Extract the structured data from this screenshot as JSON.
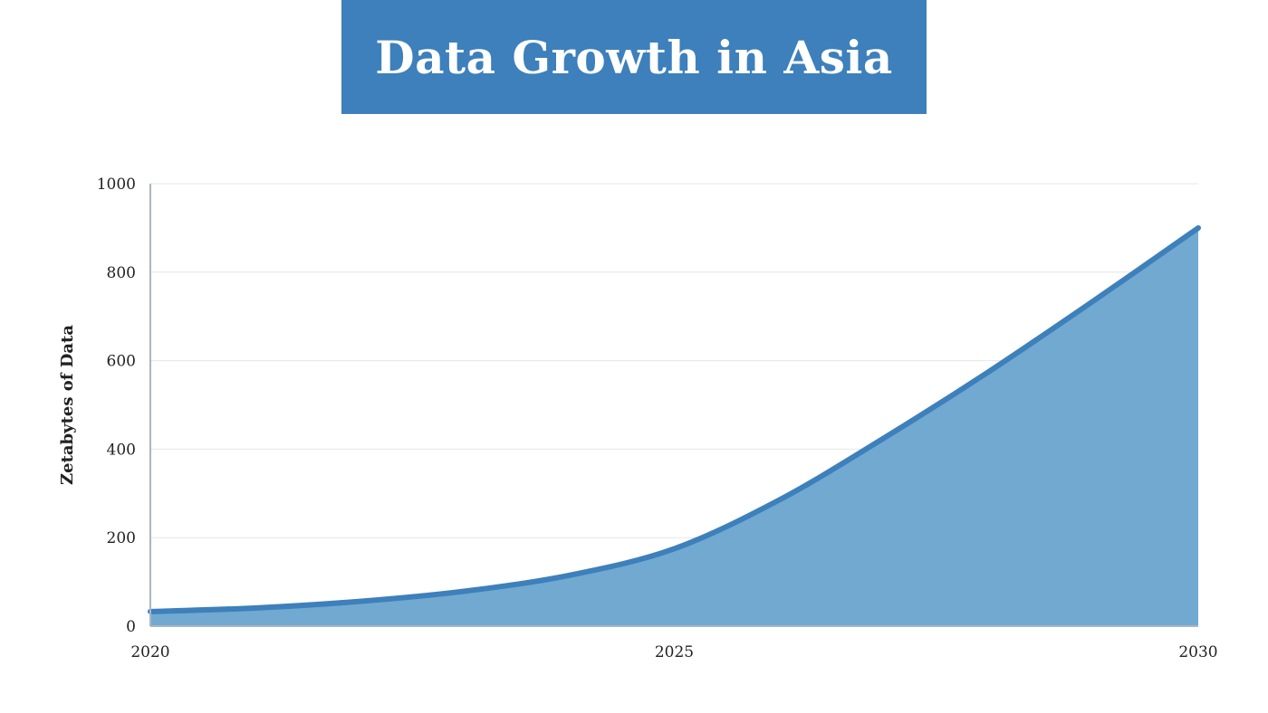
{
  "chart_data": {
    "type": "area",
    "title": "Data Growth in Asia",
    "xlabel": "",
    "ylabel": "Zetabytes of Data",
    "x": [
      2020,
      2021,
      2022,
      2023,
      2024,
      2025,
      2026,
      2027,
      2028,
      2029,
      2030
    ],
    "series": [
      {
        "values": [
          33,
          41,
          56,
          79,
          115,
          175,
          285,
          425,
          575,
          735,
          900
        ]
      }
    ],
    "xlim": [
      2020,
      2030
    ],
    "ylim": [
      0,
      1000
    ],
    "xticks": [
      "2020",
      "2025",
      "2030"
    ],
    "yticks": [
      "0",
      "200",
      "400",
      "600",
      "800",
      "1000"
    ],
    "grid": true,
    "colors": {
      "line": "#3d80bb",
      "fill": "#72a9d1",
      "title_background": "#3d80bb",
      "grid": "#e3e6ea",
      "axis": "#a9b6c4"
    }
  }
}
